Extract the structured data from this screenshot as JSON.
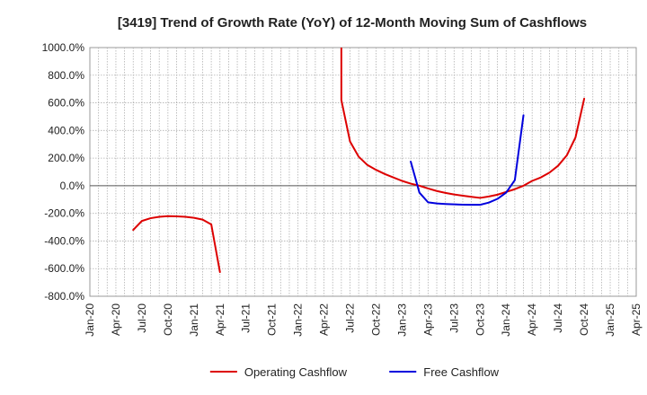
{
  "chart_data": {
    "type": "line",
    "title": "[3419]  Trend of Growth Rate (YoY) of 12-Month Moving Sum of Cashflows",
    "xlabel": "",
    "ylabel": "",
    "ylim": [
      -800,
      1000
    ],
    "yticks": [
      1000,
      800,
      600,
      400,
      200,
      0,
      -200,
      -400,
      -600,
      -800
    ],
    "ytick_labels": [
      "1000.0%",
      "800.0%",
      "600.0%",
      "400.0%",
      "200.0%",
      "0.0%",
      "-200.0%",
      "-400.0%",
      "-600.0%",
      "-800.0%"
    ],
    "xlim": [
      "2020-01",
      "2025-04"
    ],
    "xticks": [
      "2020-01",
      "2020-04",
      "2020-07",
      "2020-10",
      "2021-01",
      "2021-04",
      "2021-07",
      "2021-10",
      "2022-01",
      "2022-04",
      "2022-07",
      "2022-10",
      "2023-01",
      "2023-04",
      "2023-07",
      "2023-10",
      "2024-01",
      "2024-04",
      "2024-07",
      "2024-10",
      "2025-01",
      "2025-04"
    ],
    "xtick_labels": [
      "Jan-20",
      "Apr-20",
      "Jul-20",
      "Oct-20",
      "Jan-21",
      "Apr-21",
      "Jul-21",
      "Oct-21",
      "Jan-22",
      "Apr-22",
      "Jul-22",
      "Oct-22",
      "Jan-23",
      "Apr-23",
      "Jul-23",
      "Oct-23",
      "Jan-24",
      "Apr-24",
      "Jul-24",
      "Oct-24",
      "Jan-25",
      "Apr-25"
    ],
    "grid": true,
    "legend_position": "bottom-center",
    "series": [
      {
        "name": "Operating Cashflow",
        "color": "#dd0000",
        "points": [
          [
            "2020-06",
            -320
          ],
          [
            "2020-07",
            -255
          ],
          [
            "2020-08",
            -235
          ],
          [
            "2020-09",
            -225
          ],
          [
            "2020-10",
            -220
          ],
          [
            "2020-11",
            -222
          ],
          [
            "2020-12",
            -225
          ],
          [
            "2021-01",
            -232
          ],
          [
            "2021-02",
            -245
          ],
          [
            "2021-03",
            -280
          ],
          [
            "2021-04",
            -625
          ]
        ]
      },
      {
        "name": "Operating Cashflow",
        "color": "#dd0000",
        "points": [
          [
            "2022-06",
            1000
          ],
          [
            "2022-06",
            620
          ],
          [
            "2022-07",
            320
          ],
          [
            "2022-08",
            210
          ],
          [
            "2022-09",
            150
          ],
          [
            "2022-10",
            115
          ],
          [
            "2022-11",
            85
          ],
          [
            "2022-12",
            60
          ],
          [
            "2023-01",
            35
          ],
          [
            "2023-02",
            15
          ],
          [
            "2023-03",
            0
          ],
          [
            "2023-04",
            -20
          ],
          [
            "2023-05",
            -38
          ],
          [
            "2023-06",
            -52
          ],
          [
            "2023-07",
            -63
          ],
          [
            "2023-08",
            -72
          ],
          [
            "2023-09",
            -80
          ],
          [
            "2023-10",
            -88
          ],
          [
            "2023-11",
            -78
          ],
          [
            "2023-12",
            -65
          ],
          [
            "2024-01",
            -45
          ],
          [
            "2024-02",
            -25
          ],
          [
            "2024-03",
            0
          ],
          [
            "2024-04",
            35
          ],
          [
            "2024-05",
            60
          ],
          [
            "2024-06",
            95
          ],
          [
            "2024-07",
            145
          ],
          [
            "2024-08",
            220
          ],
          [
            "2024-09",
            350
          ],
          [
            "2024-10",
            630
          ]
        ]
      },
      {
        "name": "Free Cashflow",
        "color": "#0000dd",
        "points": [
          [
            "2023-02",
            175
          ],
          [
            "2023-03",
            -50
          ],
          [
            "2023-04",
            -120
          ],
          [
            "2023-05",
            -128
          ],
          [
            "2023-06",
            -132
          ],
          [
            "2023-07",
            -135
          ],
          [
            "2023-08",
            -137
          ],
          [
            "2023-09",
            -138
          ],
          [
            "2023-10",
            -138
          ],
          [
            "2023-11",
            -122
          ],
          [
            "2023-12",
            -95
          ],
          [
            "2024-01",
            -50
          ],
          [
            "2024-02",
            40
          ],
          [
            "2024-03",
            510
          ]
        ]
      }
    ],
    "legend": [
      {
        "label": "Operating Cashflow",
        "color": "#dd0000"
      },
      {
        "label": "Free Cashflow",
        "color": "#0000dd"
      }
    ]
  }
}
